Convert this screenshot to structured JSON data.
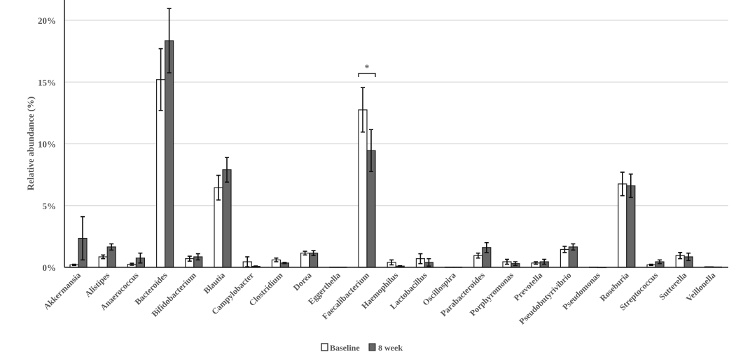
{
  "chart_data": {
    "type": "bar",
    "title": "",
    "xlabel": "",
    "ylabel": "Relative abundance (%)",
    "ylim": [
      0,
      20
    ],
    "yticks": [
      0,
      5,
      10,
      15,
      20
    ],
    "ytick_labels": [
      "0%",
      "5%",
      "10%",
      "15%",
      "20%"
    ],
    "grid": true,
    "legend_position": "bottom-center",
    "categories": [
      "Akkermansia",
      "Alistipes",
      "Anaerococcus",
      "Bacteroides",
      "Bifidobacterium",
      "Blautia",
      "Campylobacter",
      "Clostridium",
      "Dorea",
      "Eggerthella",
      "Faecalibacterium",
      "Haemophilus",
      "Lactobacillus",
      "Oscillospira",
      "Parabacteroides",
      "Porphyromonas",
      "Prevotella",
      "Pseudobutyrivibrio",
      "Pseudomonas",
      "Roseburia",
      "Streptococcus",
      "Sutterella",
      "Veillonella"
    ],
    "series": [
      {
        "name": "Baseline",
        "color": "#ffffff",
        "values": [
          0.2,
          0.85,
          0.25,
          15.2,
          0.7,
          6.45,
          0.45,
          0.6,
          1.15,
          0.02,
          12.75,
          0.4,
          0.7,
          0.02,
          0.95,
          0.45,
          0.35,
          1.45,
          0.02,
          6.75,
          0.2,
          0.95,
          0.05
        ],
        "errors": [
          0.05,
          0.15,
          0.08,
          2.5,
          0.2,
          1.0,
          0.4,
          0.15,
          0.15,
          0,
          1.8,
          0.2,
          0.4,
          0,
          0.2,
          0.2,
          0.1,
          0.25,
          0,
          0.95,
          0.05,
          0.25,
          0
        ]
      },
      {
        "name": "8 week",
        "color": "#666666",
        "values": [
          2.35,
          1.65,
          0.75,
          18.35,
          0.85,
          7.9,
          0.08,
          0.35,
          1.15,
          0.02,
          9.45,
          0.1,
          0.4,
          0.02,
          1.6,
          0.3,
          0.45,
          1.65,
          0,
          6.6,
          0.45,
          0.85,
          0.03
        ],
        "errors": [
          1.75,
          0.25,
          0.4,
          2.6,
          0.25,
          1.0,
          0.03,
          0.05,
          0.2,
          0,
          1.7,
          0.03,
          0.3,
          0,
          0.4,
          0.15,
          0.2,
          0.25,
          0,
          0.95,
          0.15,
          0.3,
          0
        ]
      }
    ],
    "annotations": [
      {
        "category": "Faecalibacterium",
        "text": "*"
      }
    ]
  }
}
